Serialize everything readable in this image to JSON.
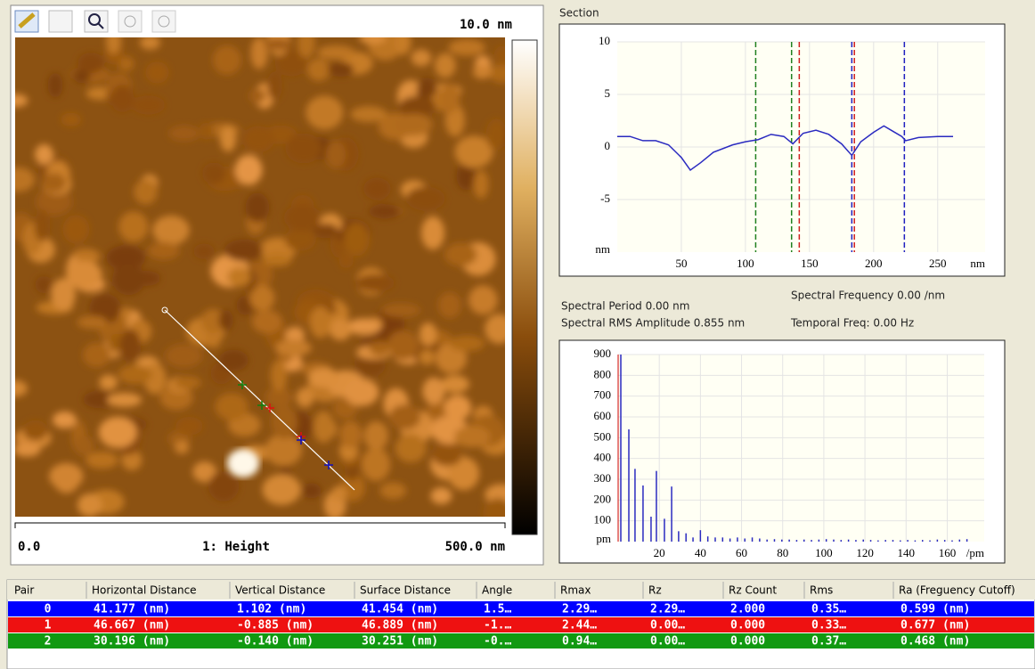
{
  "image_panel": {
    "scale_max": "10.0 nm",
    "x_start": "0.0",
    "channel": "1: Height",
    "x_end": "500.0 nm"
  },
  "section": {
    "title": "Section",
    "chart": {
      "type": "line",
      "color": "#2a2ac0",
      "x": [
        0,
        10,
        20,
        30,
        40,
        50,
        57,
        65,
        75,
        90,
        100,
        110,
        120,
        130,
        137,
        145,
        155,
        165,
        175,
        183,
        190,
        200,
        208,
        215,
        222,
        225,
        235,
        250,
        262
      ],
      "values": [
        1,
        1,
        0.6,
        0.6,
        0.2,
        -1,
        -2.2,
        -1.5,
        -0.5,
        0.2,
        0.5,
        0.7,
        1.2,
        1,
        0.3,
        1.3,
        1.6,
        1.2,
        0.3,
        -0.8,
        0.5,
        1.4,
        2,
        1.5,
        1,
        0.6,
        0.9,
        1,
        1
      ],
      "xlim": [
        0,
        287
      ],
      "ylim": [
        -10,
        10
      ],
      "xticks": [
        50,
        100,
        150,
        200,
        250
      ],
      "yticks": [
        -5,
        0,
        5,
        10
      ],
      "x_unit": "nm",
      "y_unit": "nm",
      "cursors": [
        {
          "x": 108,
          "color": "#208020"
        },
        {
          "x": 136,
          "color": "#208020"
        },
        {
          "x": 142,
          "color": "#d02020"
        },
        {
          "x": 183,
          "color": "#2020c0"
        },
        {
          "x": 185,
          "color": "#d02020"
        },
        {
          "x": 224,
          "color": "#2020c0"
        }
      ]
    }
  },
  "stats": {
    "period": "Spectral Period 0.00 nm",
    "frequency": "Spectral Frequency 0.00 /nm",
    "rms": "Spectral RMS Amplitude 0.855 nm",
    "temporal": "Temporal Freq: 0.00 Hz"
  },
  "spectrum": {
    "type": "bar",
    "color": "#2a2ac0",
    "x": [
      1.3,
      5.2,
      8.2,
      12.1,
      16,
      18.6,
      22.5,
      26,
      29.4,
      33,
      36.4,
      40,
      43.6,
      47.2,
      50.8,
      54.4,
      58,
      61.6,
      65.2,
      68.8,
      72.4,
      76,
      79.6,
      83.2,
      86.8,
      90.4,
      94,
      97.6,
      101.2,
      104.8,
      108.4,
      112,
      115.6,
      119.2,
      122.8,
      126.4,
      130,
      133.6,
      137.2,
      140.8,
      144.4,
      148,
      151.6,
      155.2,
      158.8,
      162.4,
      166,
      169.6
    ],
    "values": [
      900,
      540,
      350,
      270,
      120,
      340,
      110,
      265,
      50,
      40,
      20,
      55,
      25,
      20,
      20,
      15,
      20,
      15,
      20,
      15,
      10,
      12,
      10,
      10,
      8,
      10,
      8,
      10,
      12,
      10,
      8,
      10,
      8,
      10,
      8,
      6,
      8,
      8,
      6,
      8,
      6,
      8,
      6,
      10,
      8,
      6,
      10,
      12
    ],
    "xlim": [
      0,
      178
    ],
    "ylim": [
      0,
      900
    ],
    "xticks": [
      20,
      40,
      60,
      80,
      100,
      120,
      140,
      160
    ],
    "yticks": [
      100,
      200,
      300,
      400,
      500,
      600,
      700,
      800,
      900
    ],
    "x_unit": "/pm",
    "y_unit": "pm"
  },
  "table": {
    "headers": [
      "Pair",
      "Horizontal Distance",
      "Vertical Distance",
      "Surface Distance",
      "Angle",
      "Rmax",
      "Rz",
      "Rz Count",
      "Rms",
      "Ra (Freguency Cutoff)"
    ],
    "row_colors": [
      "#0000ff",
      "#ee1111",
      "#119911"
    ],
    "rows": [
      [
        "0",
        "41.177 (nm)",
        "1.102 (nm)",
        "41.454 (nm)",
        "1.5…",
        "2.29…",
        "2.29…",
        "2.000",
        "0.35…",
        "0.599 (nm)"
      ],
      [
        "1",
        "46.667 (nm)",
        "-0.885 (nm)",
        "46.889 (nm)",
        "-1.…",
        "2.44…",
        "0.00…",
        "0.000",
        "0.33…",
        "0.677 (nm)"
      ],
      [
        "2",
        "30.196 (nm)",
        "-0.140 (nm)",
        "30.251 (nm)",
        "-0.…",
        "0.94…",
        "0.00…",
        "0.000",
        "0.37…",
        "0.468 (nm)"
      ]
    ]
  }
}
